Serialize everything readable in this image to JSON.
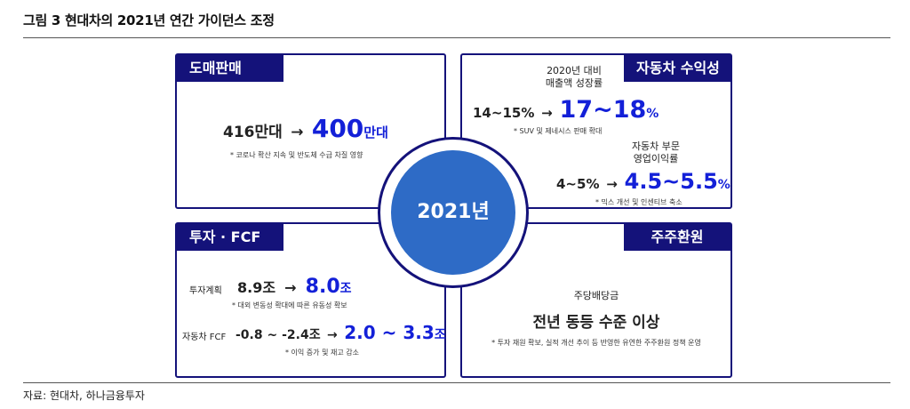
{
  "title": "그림 3  현대차의 2021년 연간 가이던스 조정",
  "source": "자료: 현대차, 하나금융투자",
  "center_label": "2021년",
  "wholesale": {
    "tag": "도매판매",
    "from": "416만대",
    "arrow": "→",
    "to_value": "400",
    "to_unit": "만대",
    "note": "* 코로나 확산 지속 및 반도체 수급 차질 영향"
  },
  "profitability": {
    "tag": "자동차 수익성",
    "revenue_label_1": "2020년 대비",
    "revenue_label_2": "매출액 성장률",
    "revenue_from": "14~15%",
    "arrow": "→",
    "revenue_to_value": "17~18",
    "revenue_to_unit": "%",
    "revenue_note": "* SUV 및 제네시스 판매 확대",
    "margin_label_1": "자동차 부문",
    "margin_label_2": "영업이익률",
    "margin_from": "4~5%",
    "margin_to_value": "4.5~5.5",
    "margin_to_unit": "%",
    "margin_note": "* 믹스 개선 및 인센티브 축소"
  },
  "investment": {
    "tag": "투자 · FCF",
    "capex_label": "투자계획",
    "capex_from": "8.9조",
    "arrow": "→",
    "capex_to_value": "8.0",
    "capex_to_unit": "조",
    "capex_note": "* 대외 변동성 확대에 따른 유동성 확보",
    "fcf_label": "자동차 FCF",
    "fcf_from": "-0.8 ~ -2.4조",
    "fcf_to_value": "2.0 ~ 3.3",
    "fcf_to_unit": "조",
    "fcf_note": "* 이익 증가 및 재고 감소"
  },
  "shareholder": {
    "tag": "주주환원",
    "label": "주당배당금",
    "value": "전년 동등 수준 이상",
    "note": "* 투자 재원 확보, 실적 개선 추이 등 반영한 유연한 주주환원 정책 운영"
  }
}
